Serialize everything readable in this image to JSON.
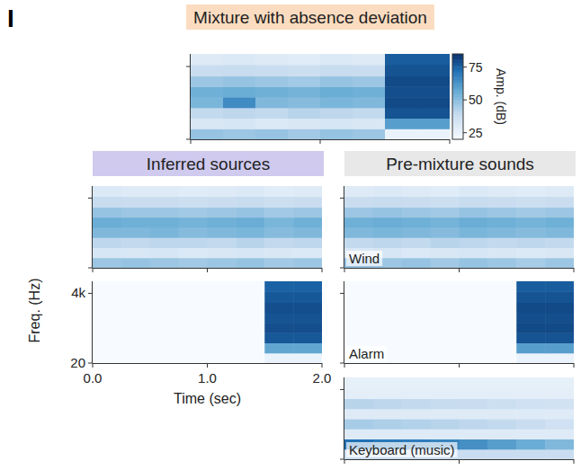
{
  "chart_data": {
    "type": "heatmap",
    "panel_letter": "I",
    "title": "Mixture with absence deviation",
    "groups": [
      {
        "title": "Inferred sources"
      },
      {
        "title": "Pre-mixture sounds"
      }
    ],
    "xlabel": "Time (sec)",
    "ylabel": "Freq. (Hz)",
    "log": "y",
    "xlim": [
      0,
      2
    ],
    "xticks": [
      {
        "value": 0,
        "label": "0.0"
      },
      {
        "value": 1,
        "label": "1.0"
      },
      {
        "value": 2,
        "label": "2.0"
      }
    ],
    "ylim": [
      20,
      10000
    ],
    "yticks": [
      {
        "value": 20,
        "label": "20"
      },
      {
        "value": 4000,
        "label": "4k"
      }
    ],
    "time_edges": [
      0,
      0.25,
      0.5,
      0.75,
      1,
      1.25,
      1.5,
      1.75,
      2
    ],
    "freq_edges": [
      20,
      43,
      93,
      200,
      430,
      930,
      2000,
      4600,
      10000
    ],
    "colorbar": {
      "label": "Amp. (dB)",
      "lim": [
        20,
        85
      ],
      "ticks": [
        25,
        50,
        75
      ]
    },
    "panels": [
      {
        "cells": [
          [
            48,
            47,
            48,
            46,
            48,
            47,
            25,
            25
          ],
          [
            32,
            33,
            31,
            32,
            33,
            32,
            60,
            60
          ],
          [
            40,
            41,
            40,
            42,
            41,
            40,
            78,
            78
          ],
          [
            53,
            65,
            52,
            51,
            53,
            52,
            80,
            80
          ],
          [
            55,
            56,
            55,
            54,
            56,
            55,
            79,
            79
          ],
          [
            47,
            48,
            47,
            46,
            48,
            47,
            80,
            80
          ],
          [
            38,
            39,
            38,
            37,
            39,
            38,
            78,
            78
          ],
          [
            30,
            31,
            30,
            29,
            31,
            30,
            76,
            76
          ]
        ]
      },
      {
        "cells": [
          [
            47,
            48,
            47,
            46,
            47,
            48,
            46,
            47
          ],
          [
            33,
            32,
            33,
            31,
            32,
            33,
            32,
            31
          ],
          [
            41,
            40,
            41,
            41,
            40,
            42,
            40,
            41
          ],
          [
            52,
            52,
            53,
            51,
            52,
            53,
            51,
            52
          ],
          [
            56,
            55,
            55,
            54,
            55,
            56,
            53,
            55
          ],
          [
            48,
            47,
            47,
            46,
            47,
            48,
            46,
            47
          ],
          [
            39,
            38,
            38,
            37,
            38,
            39,
            37,
            38
          ],
          [
            31,
            30,
            30,
            29,
            30,
            31,
            29,
            30
          ]
        ]
      },
      {
        "cells": [
          [
            20,
            20,
            20,
            20,
            20,
            20,
            25,
            25
          ],
          [
            20,
            20,
            20,
            20,
            20,
            20,
            58,
            58
          ],
          [
            20,
            20,
            20,
            20,
            20,
            20,
            77,
            77
          ],
          [
            20,
            20,
            20,
            20,
            20,
            20,
            79,
            79
          ],
          [
            20,
            20,
            20,
            20,
            20,
            20,
            78,
            78
          ],
          [
            20,
            20,
            20,
            20,
            20,
            20,
            79,
            79
          ],
          [
            20,
            20,
            20,
            20,
            20,
            20,
            77,
            77
          ],
          [
            20,
            20,
            20,
            20,
            20,
            20,
            75,
            75
          ]
        ]
      },
      {
        "label": "Wind",
        "cells": [
          [
            48,
            47,
            48,
            46,
            48,
            47,
            45,
            47
          ],
          [
            32,
            33,
            31,
            32,
            33,
            32,
            31,
            32
          ],
          [
            40,
            41,
            40,
            42,
            41,
            40,
            41,
            40
          ],
          [
            52,
            53,
            52,
            51,
            53,
            52,
            51,
            52
          ],
          [
            55,
            56,
            55,
            54,
            56,
            55,
            54,
            55
          ],
          [
            47,
            48,
            47,
            46,
            48,
            47,
            46,
            47
          ],
          [
            38,
            39,
            38,
            37,
            39,
            38,
            37,
            38
          ],
          [
            30,
            31,
            30,
            29,
            31,
            30,
            29,
            30
          ]
        ]
      },
      {
        "label": "Alarm",
        "cells": [
          [
            20,
            20,
            20,
            20,
            20,
            20,
            25,
            25
          ],
          [
            20,
            20,
            20,
            20,
            20,
            20,
            60,
            60
          ],
          [
            20,
            20,
            20,
            20,
            20,
            20,
            78,
            78
          ],
          [
            20,
            20,
            20,
            20,
            20,
            20,
            80,
            80
          ],
          [
            20,
            20,
            20,
            20,
            20,
            20,
            79,
            79
          ],
          [
            20,
            20,
            20,
            20,
            20,
            20,
            80,
            80
          ],
          [
            20,
            20,
            20,
            20,
            20,
            20,
            78,
            78
          ],
          [
            20,
            20,
            20,
            20,
            20,
            20,
            76,
            76
          ]
        ]
      },
      {
        "label": "Keyboard (music)",
        "cells": [
          [
            38,
            38,
            38,
            38,
            38,
            38,
            38,
            38
          ],
          [
            72,
            70,
            69,
            67,
            64,
            60,
            56,
            52
          ],
          [
            30,
            30,
            30,
            30,
            30,
            30,
            30,
            30
          ],
          [
            45,
            44,
            43,
            42,
            41,
            40,
            38,
            36
          ],
          [
            30,
            30,
            30,
            30,
            30,
            30,
            30,
            30
          ],
          [
            42,
            41,
            40,
            39,
            38,
            37,
            36,
            35
          ],
          [
            28,
            28,
            28,
            28,
            28,
            28,
            28,
            28
          ],
          [
            27,
            27,
            27,
            27,
            27,
            27,
            27,
            27
          ]
        ]
      }
    ]
  }
}
